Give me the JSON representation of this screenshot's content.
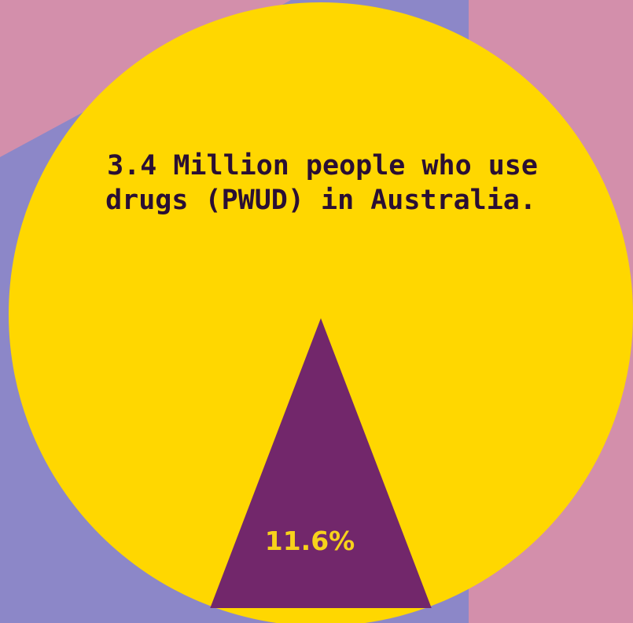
{
  "colors": {
    "background": "#d38fab",
    "backdrop": "#8c87c8",
    "pie_main": "#ffd700",
    "pie_slice": "#72276b",
    "title_text": "#2a0f33",
    "slice_label_text": "#f7d21b"
  },
  "chart_data": {
    "type": "pie",
    "title_lines": [
      "3.4 Million people who use",
      "drugs (PWUD) in Australia."
    ],
    "slices": [
      {
        "value": 88.4,
        "label": "",
        "color": "#ffd700"
      },
      {
        "value": 11.6,
        "label": "11.6%",
        "color": "#72276b"
      }
    ],
    "legend": "none"
  }
}
